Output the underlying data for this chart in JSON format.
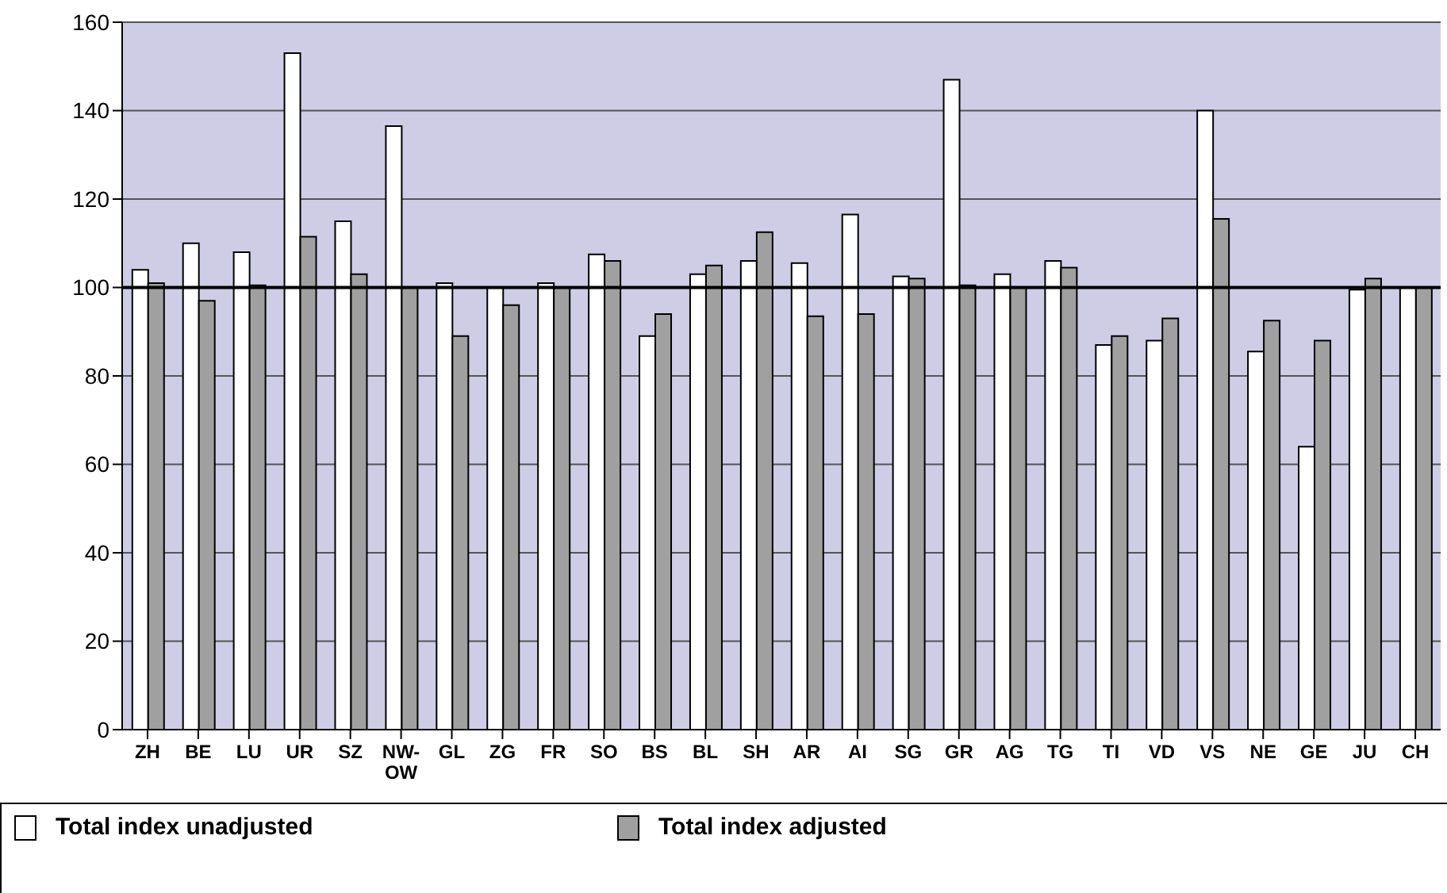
{
  "chart_data": {
    "type": "bar",
    "categories": [
      "ZH",
      "BE",
      "LU",
      "UR",
      "SZ",
      "NW-OW",
      "GL",
      "ZG",
      "FR",
      "SO",
      "BS",
      "BL",
      "SH",
      "AR",
      "AI",
      "SG",
      "GR",
      "AG",
      "TG",
      "TI",
      "VD",
      "VS",
      "NE",
      "GE",
      "JU",
      "CH"
    ],
    "series": [
      {
        "name": "Total index unadjusted",
        "color": "#ffffff",
        "values": [
          104,
          110,
          108,
          153,
          115,
          136.5,
          101,
          100,
          101,
          107.5,
          89,
          103,
          106,
          105.5,
          116.5,
          102.5,
          147,
          103,
          106,
          87,
          88,
          140,
          85.5,
          64,
          99.5,
          100
        ]
      },
      {
        "name": "Total index adjusted",
        "color": "#a0a0a0",
        "values": [
          101,
          97,
          100.5,
          111.5,
          103,
          100,
          89,
          96,
          100,
          106,
          94,
          105,
          112.5,
          93.5,
          94,
          102,
          100.5,
          100,
          104.5,
          89,
          93,
          115.5,
          92.5,
          88,
          102,
          100
        ]
      }
    ],
    "ylim": [
      0,
      160
    ],
    "yticks": [
      0,
      20,
      40,
      60,
      80,
      100,
      120,
      140,
      160
    ],
    "ref_lines": [
      {
        "axis": "y",
        "value": 100,
        "color": "#000000"
      }
    ],
    "grid": "y",
    "legend": "bottom"
  }
}
